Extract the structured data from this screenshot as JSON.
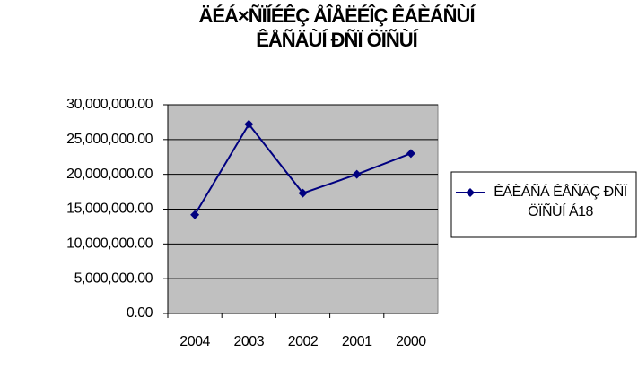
{
  "chart_data": {
    "type": "line",
    "title": "ÄÉÁ×ÑÏÍÉÊÇ ÅÎÅËÉÎÇ ÊÁÈÁÑÙÍ ÊÅÑÄÙÍ ÐÑÏ ÖÏÑÙÍ",
    "categories": [
      "2004",
      "2003",
      "2002",
      "2001",
      "2000"
    ],
    "series": [
      {
        "name": "ÊÁÈÁÑÁ ÊÅÑÄÇ ÐÑÏ ÖÏÑÙÍ Á18",
        "color": "#000080",
        "values": [
          14200000,
          27200000,
          17300000,
          20000000,
          23000000
        ]
      }
    ],
    "ylim": [
      0,
      30000000
    ],
    "yticks": [
      {
        "value": 0,
        "label": "0.00"
      },
      {
        "value": 5000000,
        "label": "5,000,000.00"
      },
      {
        "value": 10000000,
        "label": "10,000,000.00"
      },
      {
        "value": 15000000,
        "label": "15,000,000.00"
      },
      {
        "value": 20000000,
        "label": "20,000,000.00"
      },
      {
        "value": 25000000,
        "label": "25,000,000.00"
      },
      {
        "value": 30000000,
        "label": "30,000,000.00"
      }
    ],
    "grid": true,
    "legend": "right"
  }
}
